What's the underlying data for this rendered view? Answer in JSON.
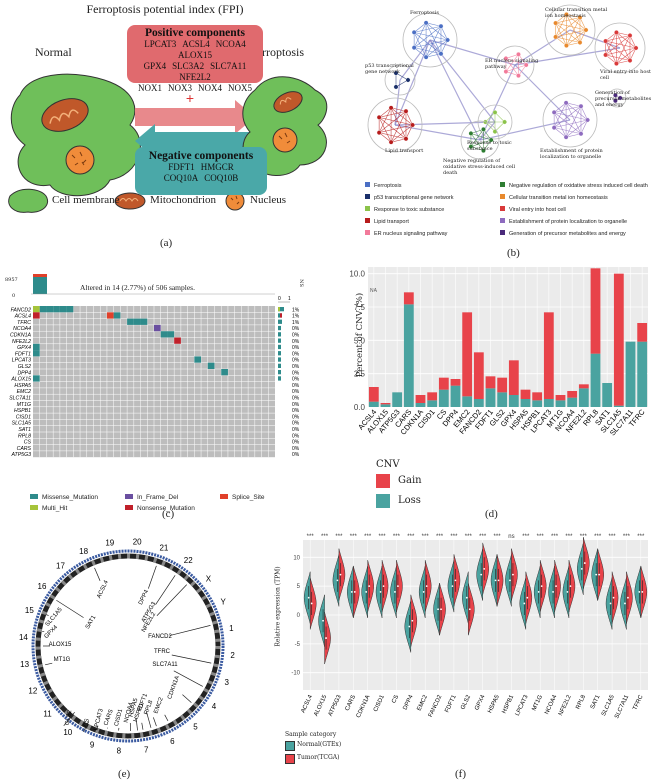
{
  "panel_a": {
    "title": "Ferroptosis potential index (FPI)",
    "normal_label": "Normal",
    "ferroptosis_label": "Ferroptosis",
    "positive": {
      "header": "Positive components",
      "genes": [
        "LPCAT3",
        "ACSL4",
        "NCOA4",
        "ALOX15",
        "GPX4",
        "SLC3A2",
        "SLC7A11",
        "NFE2L2",
        "NOX1",
        "NOX3",
        "NOX4",
        "NOX5"
      ]
    },
    "negative": {
      "header": "Negative components",
      "genes": [
        "FDFT1",
        "HMGCR",
        "COQ10A",
        "COQ10B"
      ]
    },
    "plus": "+",
    "minus": "−",
    "legend": [
      "Cell membrane",
      "Mitochondrion",
      "Nucleus"
    ],
    "label": "(a)",
    "colors": {
      "cell": "#6fbf5a",
      "positive": "#e06a6e",
      "negative": "#4aa8a8",
      "mito": "#c0582a"
    }
  },
  "panel_b": {
    "node_labels": [
      "Ferroptosis",
      "Cellular transition metal ion homeostasis",
      "ER nucleus signaling pathway",
      "p53 transcriptional gene network",
      "Viral entry into host cell",
      "Generation of precursor metabolites and energy",
      "Lipid transport",
      "Response to toxic substance",
      "Negative regulation of oxidative stress-induced cell death",
      "Establishment of protein localization to organelle"
    ],
    "legend": [
      {
        "label": "Ferroptosis",
        "color": "#4b6fc4"
      },
      {
        "label": "Negative regulation of oxidative stress induced cell death",
        "color": "#2e7d32"
      },
      {
        "label": "p53 transcriptional gene network",
        "color": "#1a2f6a"
      },
      {
        "label": "Cellular transition metal ion homeostasis",
        "color": "#e8892d"
      },
      {
        "label": "Response to toxic substance",
        "color": "#8bc34a"
      },
      {
        "label": "Viral entry into host cell",
        "color": "#d93a3a"
      },
      {
        "label": "Lipid transport",
        "color": "#b71c1c"
      },
      {
        "label": "Establishment of protein localization to organelle",
        "color": "#8e6bbf"
      },
      {
        "label": "ER nucleus signaling pathway",
        "color": "#f27a9a"
      },
      {
        "label": "Generation of precursor metabolites and energy",
        "color": "#4a2a7a"
      }
    ],
    "label": "(b)"
  },
  "panel_c": {
    "top_value": "8957",
    "top_zero": "0",
    "ns": "NS",
    "altered_text": "Altered in 14 (2.77%) of 506 samples.",
    "genes": [
      "FANCD2",
      "ACSL4",
      "TFRC",
      "NCOA4",
      "CDKN1A",
      "NFE2L2",
      "GPX4",
      "FDFT1",
      "LPCAT3",
      "GLS2",
      "DPP4",
      "ALOX15",
      "HSPA5",
      "EMC2",
      "SLC7A11",
      "MT1G",
      "HSPB1",
      "CISD1",
      "SLC1A5",
      "SAT1",
      "RPL8",
      "CS",
      "CARS",
      "ATP5G3"
    ],
    "percents": [
      "1%",
      "1%",
      "1%",
      "0%",
      "0%",
      "0%",
      "0%",
      "0%",
      "0%",
      "0%",
      "0%",
      "0%",
      "0%",
      "0%",
      "0%",
      "0%",
      "0%",
      "0%",
      "0%",
      "0%",
      "0%",
      "0%",
      "0%",
      "0%"
    ],
    "axis_ticks": [
      "0",
      "1"
    ],
    "legend": [
      {
        "label": "Missense_Mutation",
        "color": "#2e8b8b"
      },
      {
        "label": "In_Frame_Del",
        "color": "#6a4fa0"
      },
      {
        "label": "Splice_Site",
        "color": "#e0402a"
      },
      {
        "label": "Multi_Hit",
        "color": "#a6c43a"
      },
      {
        "label": "Nonsense_Mutation",
        "color": "#c0202a"
      }
    ],
    "label": "(c)"
  },
  "panel_d": {
    "ylabel": "Percent of CNV (%)",
    "ns_label": "NA",
    "legend_title": "CNV",
    "legend": [
      {
        "label": "Gain",
        "color": "#e8434a"
      },
      {
        "label": "Loss",
        "color": "#4aa3a0"
      }
    ],
    "label": "(d)",
    "chart_data": {
      "type": "bar",
      "categories": [
        "ACSL4",
        "ALOX15",
        "ATP5G3",
        "CARS",
        "CDKN1A",
        "CISD1",
        "CS",
        "DPP4",
        "EMC2",
        "FANCD2",
        "FDFT1",
        "GLS2",
        "GPX4",
        "HSPA5",
        "HSPB1",
        "LPCAT3",
        "MT1G",
        "NCOA4",
        "NFE2L2",
        "RPL8",
        "SAT1",
        "SLC1A5",
        "SLC7A11",
        "TFRC"
      ],
      "series": [
        {
          "name": "Loss",
          "values": [
            0.4,
            0.2,
            1.1,
            7.7,
            0.3,
            0.5,
            1.3,
            1.6,
            0.8,
            0.6,
            1.4,
            1.1,
            0.9,
            0.6,
            0.5,
            0.6,
            0.5,
            0.7,
            1.4,
            4.0,
            1.8,
            0.1,
            4.9,
            4.9
          ]
        },
        {
          "name": "Gain",
          "values": [
            1.1,
            0.1,
            0.0,
            0.9,
            0.6,
            0.6,
            0.9,
            0.5,
            6.3,
            3.5,
            0.9,
            1.1,
            2.6,
            0.7,
            0.6,
            6.5,
            0.4,
            0.5,
            0.3,
            6.4,
            0.0,
            9.9,
            0.0,
            1.4
          ]
        }
      ],
      "yticks": [
        "0.0",
        "2.5",
        "5.0",
        "7.5",
        "10.0"
      ],
      "ylim": [
        0,
        10.5
      ]
    }
  },
  "panel_e": {
    "chromosomes": [
      "1",
      "2",
      "3",
      "4",
      "5",
      "6",
      "7",
      "8",
      "9",
      "10",
      "11",
      "12",
      "13",
      "14",
      "15",
      "16",
      "17",
      "18",
      "19",
      "20",
      "21",
      "22",
      "X",
      "Y"
    ],
    "genes": [
      "ACSL4",
      "SAT1",
      "DPP4",
      "ATP5G3",
      "NFE2L2",
      "FANCD2",
      "TFRC",
      "SLC7A11",
      "CDKN1A",
      "EMC2",
      "RPL8",
      "HSPB1",
      "CS",
      "CARS",
      "LPCAT3",
      "CISD1",
      "GLS2",
      "MT1G",
      "ALOX15",
      "GPX4",
      "SLC1A5",
      "NCOA4",
      "HSPA5",
      "FDFT1"
    ],
    "label": "(e)"
  },
  "panel_f": {
    "ylabel": "Relative expression (TPM)",
    "yticks": [
      "10",
      "5",
      "0",
      "-5",
      "-10"
    ],
    "significance": [
      "***",
      "***",
      "***",
      "***",
      "***",
      "***",
      "***",
      "***",
      "***",
      "***",
      "***",
      "***",
      "***",
      "***",
      "ns",
      "***",
      "***",
      "***",
      "***",
      "***",
      "***",
      "***",
      "***",
      "***"
    ],
    "legend_title": "Sample category",
    "legend": [
      {
        "label": "Normal(GTEx)",
        "color": "#4aa3a0"
      },
      {
        "label": "Tumor(TCGA)",
        "color": "#e8434a"
      }
    ],
    "label": "(f)",
    "chart_data": {
      "type": "violin",
      "categories": [
        "ACSL4",
        "ALOX15",
        "ATP5G3",
        "CARS",
        "CDKN1A",
        "CISD1",
        "CS",
        "DPP4",
        "EMC2",
        "FANCD2",
        "FDFT1",
        "GLS2",
        "GPX4",
        "HSPA5",
        "HSPB1",
        "LPCAT3",
        "MT1G",
        "NCOA4",
        "NFE2L2",
        "RPL8",
        "SAT1",
        "SLC1A5",
        "SLC7A11",
        "TFRC"
      ],
      "series": [
        {
          "name": "Normal(GTEx)",
          "medians": [
            3,
            -1,
            6,
            4,
            4,
            4,
            4,
            -2,
            4,
            1,
            5,
            3,
            7,
            6,
            6,
            2,
            4,
            4,
            4,
            8,
            7,
            2,
            2,
            4
          ]
        },
        {
          "name": "Tumor(TCGA)",
          "medians": [
            2,
            -4,
            7,
            4,
            5,
            5,
            5,
            -1,
            5,
            1,
            6,
            1,
            8,
            6,
            7,
            3,
            5,
            5,
            5,
            9,
            7,
            3,
            3,
            4
          ]
        }
      ],
      "ylim": [
        -13,
        13
      ]
    }
  }
}
